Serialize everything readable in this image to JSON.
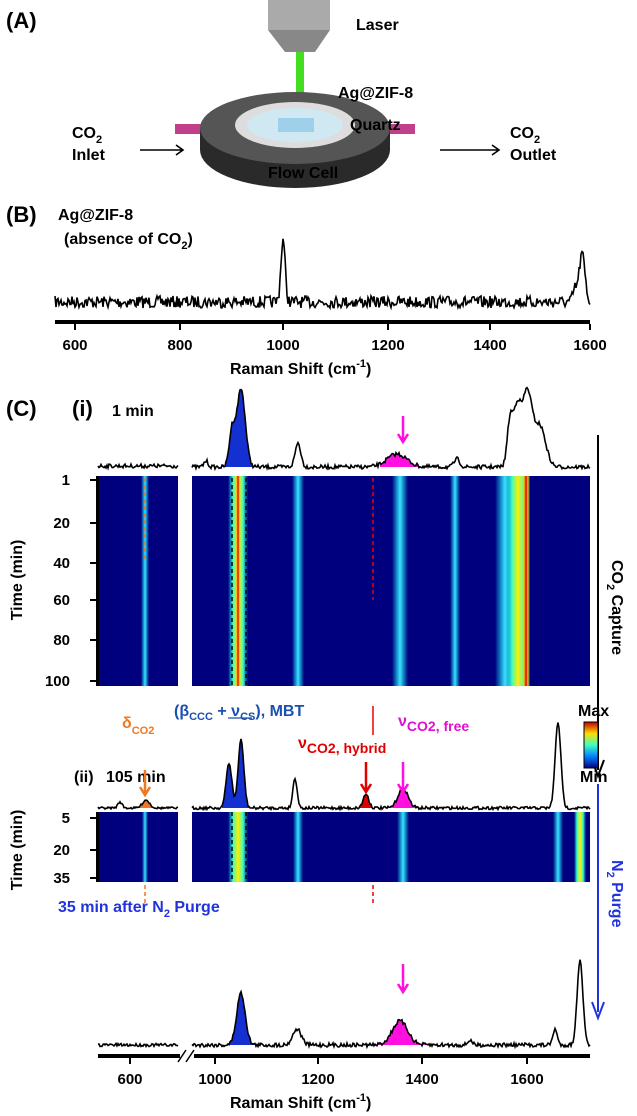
{
  "panel_a": {
    "label": "(A)",
    "laser": "Laser",
    "material": "Ag@ZIF-8",
    "window": "Quartz",
    "cell": "Flow Cell",
    "inlet": {
      "gas": "CO",
      "sub": "2",
      "text": "Inlet"
    },
    "outlet": {
      "gas": "CO",
      "sub": "2",
      "text": "Outlet"
    }
  },
  "panel_b": {
    "label": "(B)",
    "material": "Ag@ZIF-8",
    "note": {
      "pre": "(absence of CO",
      "sub": "2",
      "post": ")"
    },
    "xticks": [
      "600",
      "800",
      "1000",
      "1200",
      "1400",
      "1600"
    ],
    "xlabel": {
      "pre": "Raman Shift (cm",
      "sup": "-1",
      "post": ")"
    }
  },
  "panel_c": {
    "label": "(C)",
    "part_i": {
      "label": "(i)",
      "time": "1 min",
      "yticks": [
        "1",
        "20",
        "40",
        "60",
        "80",
        "100"
      ],
      "ylabel": "Time (min)"
    },
    "bands": {
      "delta": {
        "sym": "δ",
        "sub": "CO2"
      },
      "mbt": {
        "pre": "(β",
        "sub1": "CCC",
        "mid": " + ν",
        "sub2": "CS",
        "post": "), MBT"
      },
      "hybrid": {
        "sym": "ν",
        "sub": "CO2, hybrid"
      },
      "free": {
        "sym": "ν",
        "sub": "CO2, free"
      }
    },
    "part_ii": {
      "label": "(ii)",
      "time": "105 min",
      "yticks": [
        "5",
        "20",
        "35"
      ],
      "ylabel": "Time (min)",
      "after": {
        "pre": "35 min after N",
        "sub": "2",
        "post": " Purge"
      }
    },
    "xticks": [
      "600",
      "1000",
      "1200",
      "1400",
      "1600"
    ],
    "xlabel": {
      "pre": "Raman Shift (cm",
      "sup": "-1",
      "post": ")"
    },
    "capture": {
      "gas": "CO",
      "sub": "2",
      "text": " Capture"
    },
    "purge": {
      "gas": "N",
      "sub": "2",
      "text": " Purge"
    },
    "colorbar": {
      "max": "Max",
      "min": "Min"
    }
  }
}
